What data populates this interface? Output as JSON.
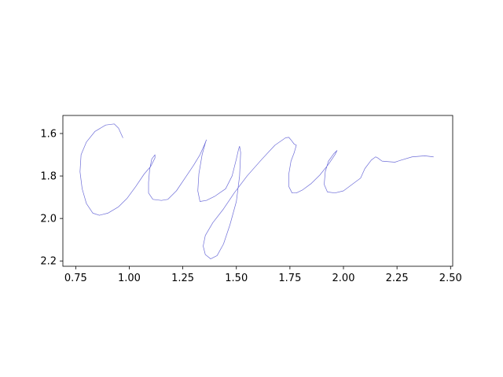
{
  "chart_data": {
    "type": "line",
    "title": "",
    "xlabel": "",
    "ylabel": "",
    "xlim": [
      0.69,
      2.51
    ],
    "ylim": [
      2.225,
      1.515
    ],
    "y_inverted": true,
    "grid": false,
    "legend": "none",
    "x_ticks": [
      0.75,
      1.0,
      1.25,
      1.5,
      1.75,
      2.0,
      2.25,
      2.5
    ],
    "x_tick_labels": [
      "0.75",
      "1.00",
      "1.25",
      "1.50",
      "1.75",
      "2.00",
      "2.25",
      "2.50"
    ],
    "y_ticks": [
      1.6,
      1.8,
      2.0,
      2.2
    ],
    "y_tick_labels": [
      "1.6",
      "1.8",
      "2.0",
      "2.2"
    ],
    "series": [
      {
        "color": "#6d6dd8",
        "points": [
          [
            0.97,
            1.62
          ],
          [
            0.95,
            1.575
          ],
          [
            0.93,
            1.555
          ],
          [
            0.89,
            1.56
          ],
          [
            0.84,
            1.59
          ],
          [
            0.8,
            1.64
          ],
          [
            0.775,
            1.7
          ],
          [
            0.77,
            1.78
          ],
          [
            0.78,
            1.86
          ],
          [
            0.8,
            1.93
          ],
          [
            0.83,
            1.975
          ],
          [
            0.86,
            1.985
          ],
          [
            0.9,
            1.975
          ],
          [
            0.95,
            1.945
          ],
          [
            0.99,
            1.905
          ],
          [
            1.03,
            1.85
          ],
          [
            1.07,
            1.79
          ],
          [
            1.1,
            1.755
          ],
          [
            1.12,
            1.715
          ],
          [
            1.12,
            1.7
          ],
          [
            1.105,
            1.72
          ],
          [
            1.095,
            1.77
          ],
          [
            1.09,
            1.83
          ],
          [
            1.09,
            1.88
          ],
          [
            1.11,
            1.91
          ],
          [
            1.15,
            1.915
          ],
          [
            1.18,
            1.91
          ],
          [
            1.22,
            1.87
          ],
          [
            1.26,
            1.81
          ],
          [
            1.3,
            1.75
          ],
          [
            1.33,
            1.7
          ],
          [
            1.35,
            1.655
          ],
          [
            1.36,
            1.63
          ],
          [
            1.355,
            1.645
          ],
          [
            1.34,
            1.7
          ],
          [
            1.325,
            1.79
          ],
          [
            1.32,
            1.87
          ],
          [
            1.33,
            1.92
          ],
          [
            1.36,
            1.915
          ],
          [
            1.4,
            1.895
          ],
          [
            1.45,
            1.86
          ],
          [
            1.48,
            1.8
          ],
          [
            1.5,
            1.72
          ],
          [
            1.51,
            1.675
          ],
          [
            1.515,
            1.66
          ],
          [
            1.52,
            1.69
          ],
          [
            1.515,
            1.8
          ],
          [
            1.5,
            1.92
          ],
          [
            1.47,
            2.03
          ],
          [
            1.44,
            2.12
          ],
          [
            1.41,
            2.175
          ],
          [
            1.38,
            2.19
          ],
          [
            1.355,
            2.17
          ],
          [
            1.345,
            2.13
          ],
          [
            1.355,
            2.08
          ],
          [
            1.39,
            2.02
          ],
          [
            1.44,
            1.955
          ],
          [
            1.49,
            1.88
          ],
          [
            1.55,
            1.8
          ],
          [
            1.62,
            1.72
          ],
          [
            1.68,
            1.655
          ],
          [
            1.73,
            1.62
          ],
          [
            1.745,
            1.618
          ],
          [
            1.755,
            1.63
          ],
          [
            1.77,
            1.65
          ],
          [
            1.78,
            1.655
          ],
          [
            1.77,
            1.69
          ],
          [
            1.755,
            1.73
          ],
          [
            1.745,
            1.79
          ],
          [
            1.745,
            1.85
          ],
          [
            1.76,
            1.88
          ],
          [
            1.78,
            1.88
          ],
          [
            1.81,
            1.865
          ],
          [
            1.85,
            1.835
          ],
          [
            1.89,
            1.795
          ],
          [
            1.93,
            1.745
          ],
          [
            1.96,
            1.7
          ],
          [
            1.97,
            1.68
          ],
          [
            1.955,
            1.695
          ],
          [
            1.93,
            1.73
          ],
          [
            1.915,
            1.78
          ],
          [
            1.91,
            1.84
          ],
          [
            1.925,
            1.875
          ],
          [
            1.96,
            1.88
          ],
          [
            2.0,
            1.87
          ],
          [
            2.04,
            1.84
          ],
          [
            2.08,
            1.81
          ],
          [
            2.1,
            1.765
          ],
          [
            2.13,
            1.725
          ],
          [
            2.15,
            1.71
          ],
          [
            2.16,
            1.715
          ],
          [
            2.18,
            1.73
          ],
          [
            2.24,
            1.735
          ],
          [
            2.27,
            1.725
          ],
          [
            2.32,
            1.71
          ],
          [
            2.38,
            1.705
          ],
          [
            2.42,
            1.71
          ]
        ]
      }
    ]
  }
}
